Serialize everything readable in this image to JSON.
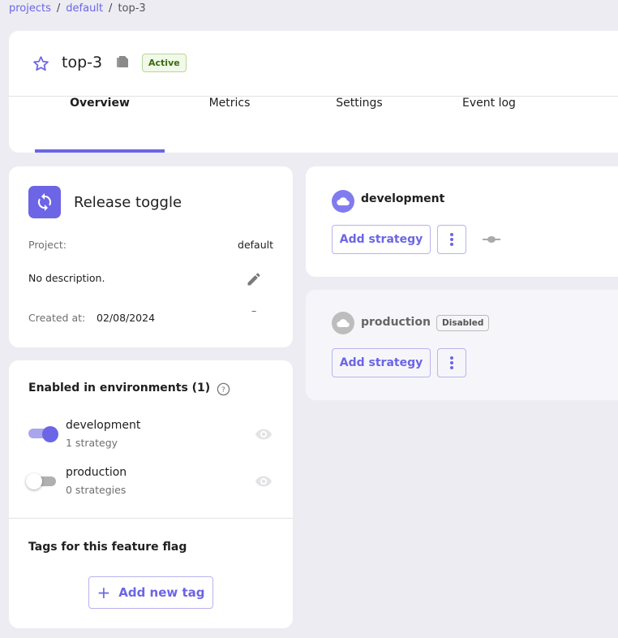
{
  "breadcrumb": [
    {
      "label": "projects"
    },
    {
      "label": "default"
    },
    {
      "label": "top-3"
    }
  ],
  "header": {
    "title": "top-3",
    "status": "Active",
    "favorite_icon": "star-outline-icon",
    "copy_icon": "copy-icon"
  },
  "tabs": [
    {
      "label": "Overview",
      "active": true
    },
    {
      "label": "Metrics"
    },
    {
      "label": "Settings"
    },
    {
      "label": "Event log"
    }
  ],
  "details": {
    "type": "Release toggle",
    "project_label": "Project:",
    "project_value": "default",
    "description": "No description.",
    "created_label": "Created at:",
    "created_value": "02/08/2024",
    "dash": "–"
  },
  "environments_panel": {
    "title": "Enabled in environments (1)",
    "items": [
      {
        "name": "development",
        "strategies": "1 strategy",
        "enabled": true
      },
      {
        "name": "production",
        "strategies": "0 strategies",
        "enabled": false
      }
    ]
  },
  "tags": {
    "title": "Tags for this feature flag",
    "add_label": "Add new tag"
  },
  "env_cards": [
    {
      "name": "development",
      "add_label": "Add strategy"
    },
    {
      "name": "production",
      "badge": "Disabled",
      "add_label": "Add strategy"
    }
  ],
  "colors": {
    "accent": "#6c65e5",
    "background": "#ececf2"
  }
}
